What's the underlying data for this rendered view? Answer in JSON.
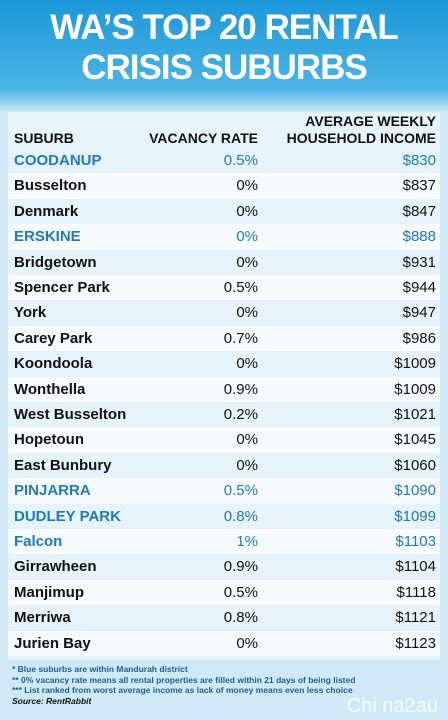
{
  "header": {
    "title": [
      "WA’S TOP 20 RENTAL",
      "CRISIS SUBURBS"
    ]
  },
  "table": {
    "columns": [
      [
        "SUBURB"
      ],
      [
        "VACANCY RATE"
      ],
      [
        "AVERAGE WEEKLY",
        "HOUSEHOLD INCOME"
      ]
    ],
    "highlight_color": "#1f79bd",
    "rows": [
      {
        "suburb": "COODANUP",
        "vacancy": "0.5%",
        "income": "$830",
        "highlight": true
      },
      {
        "suburb": "Busselton",
        "vacancy": "0%",
        "income": "$837",
        "highlight": false
      },
      {
        "suburb": "Denmark",
        "vacancy": "0%",
        "income": "$847",
        "highlight": false
      },
      {
        "suburb": "ERSKINE",
        "vacancy": "0%",
        "income": "$888",
        "highlight": true
      },
      {
        "suburb": "Bridgetown",
        "vacancy": "0%",
        "income": "$931",
        "highlight": false
      },
      {
        "suburb": "Spencer Park",
        "vacancy": "0.5%",
        "income": "$944",
        "highlight": false
      },
      {
        "suburb": "York",
        "vacancy": "0%",
        "income": "$947",
        "highlight": false
      },
      {
        "suburb": "Carey Park",
        "vacancy": "0.7%",
        "income": "$986",
        "highlight": false
      },
      {
        "suburb": "Koondoola",
        "vacancy": "0%",
        "income": "$1009",
        "highlight": false
      },
      {
        "suburb": "Wonthella",
        "vacancy": "0.9%",
        "income": "$1009",
        "highlight": false
      },
      {
        "suburb": "West Busselton",
        "vacancy": "0.2%",
        "income": "$1021",
        "highlight": false
      },
      {
        "suburb": "Hopetoun",
        "vacancy": "0%",
        "income": "$1045",
        "highlight": false
      },
      {
        "suburb": "East Bunbury",
        "vacancy": "0%",
        "income": "$1060",
        "highlight": false
      },
      {
        "suburb": "PINJARRA",
        "vacancy": "0.5%",
        "income": "$1090",
        "highlight": true
      },
      {
        "suburb": "DUDLEY PARK",
        "vacancy": "0.8%",
        "income": "$1099",
        "highlight": true
      },
      {
        "suburb": "Falcon",
        "vacancy": "1%",
        "income": "$1103",
        "highlight": true
      },
      {
        "suburb": "Girrawheen",
        "vacancy": "0.9%",
        "income": "$1104",
        "highlight": false
      },
      {
        "suburb": "Manjimup",
        "vacancy": "0.5%",
        "income": "$1118",
        "highlight": false
      },
      {
        "suburb": "Merriwa",
        "vacancy": "0.8%",
        "income": "$1121",
        "highlight": false
      },
      {
        "suburb": "Jurien Bay",
        "vacancy": "0%",
        "income": "$1123",
        "highlight": false
      }
    ]
  },
  "footnotes": [
    "* Blue suburbs are within Mandurah district",
    "** 0% vacancy rate means all rental properties are filled within 21 days of being listed",
    "*** List ranked from worst average income as lack of money means even less choice",
    "Source: RentRabbit"
  ],
  "watermark": "Chi na2au"
}
